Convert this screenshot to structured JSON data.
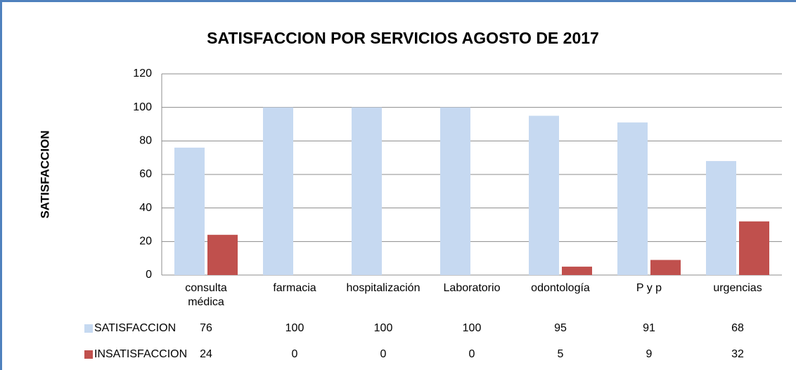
{
  "chart_data": {
    "type": "bar",
    "title": "SATISFACCION POR SERVICIOS AGOSTO DE 2017",
    "y_label": "SATISFACCION",
    "categories": [
      "consulta médica",
      "farmacia",
      "hospitalización",
      "Laboratorio",
      "odontología",
      "P y p",
      "urgencias"
    ],
    "series": [
      {
        "name": "SATISFACCION",
        "color": "#c6d9f1",
        "values": [
          76,
          100,
          100,
          100,
          95,
          91,
          68
        ]
      },
      {
        "name": "INSATISFACCION",
        "color": "#c0504d",
        "values": [
          24,
          0,
          0,
          0,
          5,
          9,
          32
        ]
      }
    ],
    "ylim": [
      0,
      120
    ],
    "yticks": [
      0,
      20,
      40,
      60,
      80,
      100,
      120
    ],
    "grid": true,
    "data_table": true
  }
}
